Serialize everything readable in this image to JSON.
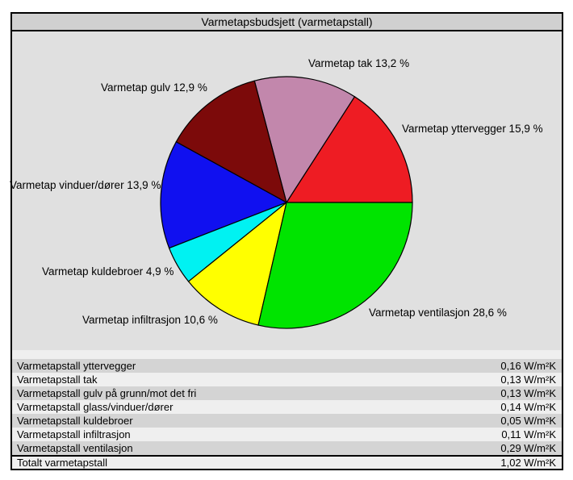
{
  "window": {
    "title": "Varmetapsbudsjett (varmetapstall)"
  },
  "colors": {
    "panel_background": "#e0e0e0",
    "titlebar_background": "#d0d0d0",
    "table_row_dark": "#d4d4d4",
    "table_row_light": "#efefef",
    "pie_stroke": "#000000"
  },
  "chart_data": {
    "type": "pie",
    "title": "Varmetapsbudsjett (varmetapstall)",
    "unit": "%",
    "start_angle_deg": 0,
    "direction": "counterclockwise",
    "legend_position": "labels-around-pie",
    "slices": [
      {
        "name": "Varmetap yttervegger",
        "value": 15.9,
        "display": "Varmetap yttervegger 15,9 %",
        "color": "#ee1c23"
      },
      {
        "name": "Varmetap tak",
        "value": 13.2,
        "display": "Varmetap tak 13,2 %",
        "color": "#c287ac"
      },
      {
        "name": "Varmetap gulv",
        "value": 12.9,
        "display": "Varmetap gulv 12,9 %",
        "color": "#7c0a0a"
      },
      {
        "name": "Varmetap vinduer/dører",
        "value": 13.9,
        "display": "Varmetap vinduer/dører 13,9 %",
        "color": "#1010f0"
      },
      {
        "name": "Varmetap kuldebroer",
        "value": 4.9,
        "display": "Varmetap kuldebroer 4,9 %",
        "color": "#00f2f2"
      },
      {
        "name": "Varmetap infiltrasjon",
        "value": 10.6,
        "display": "Varmetap infiltrasjon 10,6 %",
        "color": "#ffff00"
      },
      {
        "name": "Varmetap ventilasjon",
        "value": 28.6,
        "display": "Varmetap ventilasjon 28,6 %",
        "color": "#00e400"
      }
    ]
  },
  "table": {
    "rows": [
      {
        "label": "Varmetapstall yttervegger",
        "value": "0,16 W/m²K",
        "shaded": true,
        "total": false
      },
      {
        "label": "Varmetapstall tak",
        "value": "0,13 W/m²K",
        "shaded": false,
        "total": false
      },
      {
        "label": "Varmetapstall gulv på grunn/mot det fri",
        "value": "0,13 W/m²K",
        "shaded": true,
        "total": false
      },
      {
        "label": "Varmetapstall glass/vinduer/dører",
        "value": "0,14 W/m²K",
        "shaded": false,
        "total": false
      },
      {
        "label": "Varmetapstall kuldebroer",
        "value": "0,05 W/m²K",
        "shaded": true,
        "total": false
      },
      {
        "label": "Varmetapstall infiltrasjon",
        "value": "0,11 W/m²K",
        "shaded": false,
        "total": false
      },
      {
        "label": "Varmetapstall ventilasjon",
        "value": "0,29 W/m²K",
        "shaded": true,
        "total": false
      },
      {
        "label": "Totalt varmetapstall",
        "value": "1,02 W/m²K",
        "shaded": false,
        "total": true
      }
    ]
  }
}
